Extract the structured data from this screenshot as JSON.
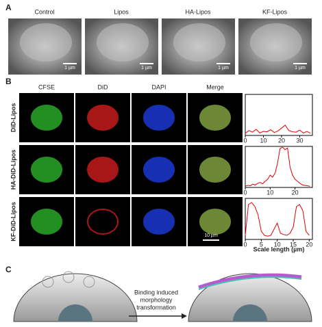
{
  "panel_a": {
    "label": "A",
    "titles": [
      "Control",
      "Lipos",
      "HA-Lipos",
      "KF-Lipos"
    ],
    "scale_bar": "1 µm"
  },
  "panel_b": {
    "label": "B",
    "columns": [
      "CFSE",
      "DiD",
      "DAPI",
      "Merge"
    ],
    "rows": [
      "DiD-Lipos",
      "HA-DiD-Lipos",
      "KF-DiD-Lipos"
    ],
    "scale_bar": "10 µm",
    "x_label": "Scale length (µm)",
    "profiles": [
      {
        "type": "line",
        "color": "#e00000",
        "xlim": [
          0,
          37
        ],
        "xticks": [
          0,
          10,
          20,
          30
        ],
        "ylim": [
          0,
          100
        ],
        "x": [
          0,
          2,
          4,
          6,
          8,
          10,
          12,
          14,
          16,
          18,
          20,
          22,
          24,
          26,
          28,
          30,
          32,
          34,
          36
        ],
        "values": [
          5,
          12,
          8,
          15,
          6,
          10,
          9,
          14,
          7,
          11,
          18,
          25,
          12,
          9,
          8,
          13,
          6,
          10,
          5
        ]
      },
      {
        "type": "line",
        "color": "#e00000",
        "xlim": [
          0,
          27
        ],
        "xticks": [
          0,
          10,
          20
        ],
        "ylim": [
          0,
          100
        ],
        "x": [
          0,
          1,
          2,
          3,
          4,
          5,
          6,
          7,
          8,
          9,
          10,
          11,
          12,
          13,
          14,
          15,
          16,
          17,
          18,
          19,
          20,
          21,
          22,
          23,
          24,
          25,
          26
        ],
        "values": [
          3,
          5,
          4,
          8,
          6,
          10,
          12,
          9,
          15,
          20,
          30,
          25,
          35,
          60,
          95,
          98,
          92,
          96,
          50,
          30,
          20,
          15,
          10,
          6,
          5,
          4,
          3
        ]
      },
      {
        "type": "line",
        "color": "#e00000",
        "xlim": [
          0,
          21
        ],
        "xticks": [
          0,
          5,
          10,
          15,
          20
        ],
        "ylim": [
          0,
          100
        ],
        "x": [
          0,
          1,
          2,
          3,
          4,
          5,
          6,
          7,
          8,
          9,
          10,
          11,
          12,
          13,
          14,
          15,
          16,
          17,
          18,
          19,
          20
        ],
        "values": [
          10,
          85,
          90,
          80,
          60,
          20,
          10,
          8,
          10,
          25,
          40,
          15,
          12,
          10,
          15,
          30,
          80,
          85,
          70,
          20,
          10
        ]
      }
    ]
  },
  "panel_c": {
    "label": "C",
    "arrow_text": [
      "Binding induced",
      "morphology",
      "transformation"
    ]
  }
}
